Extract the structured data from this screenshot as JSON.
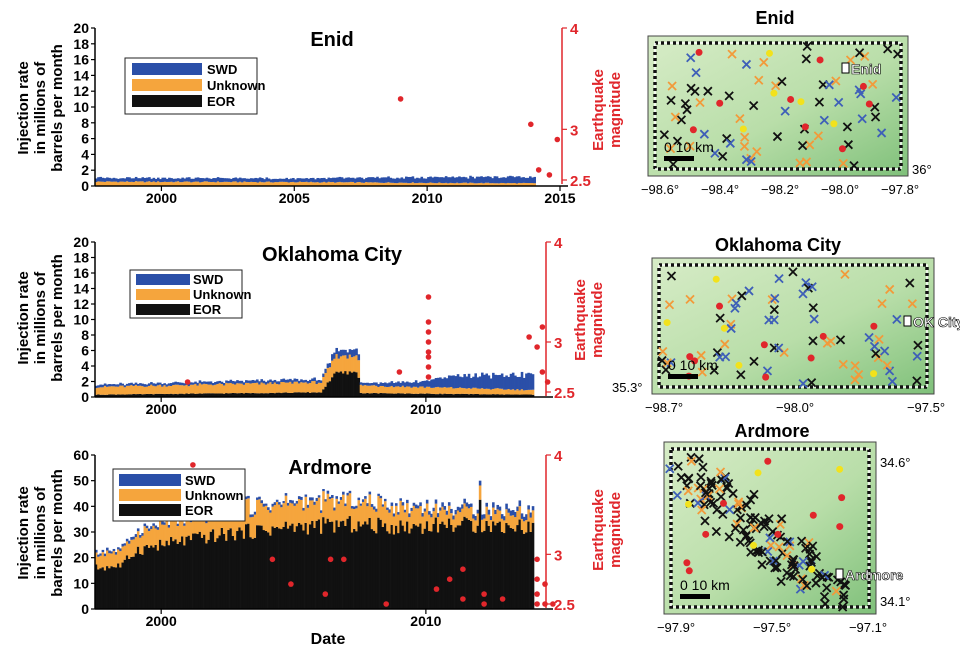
{
  "figure": {
    "yaxis_label_lines": [
      "Injection rate",
      "in millions of",
      "barrels per month"
    ],
    "right_axis_label_lines": [
      "Earthquake",
      "magnitude"
    ],
    "xlabel": "Date"
  },
  "chart_data": [
    {
      "type": "bar",
      "id": "enid",
      "title": "Enid",
      "ylim": [
        0,
        20
      ],
      "yticks": [
        0,
        2,
        4,
        6,
        8,
        10,
        12,
        14,
        16,
        18,
        20
      ],
      "xlim": [
        1997.5,
        2015
      ],
      "xticks": [
        "2000",
        "2005",
        "2010",
        "2015"
      ],
      "legend": [
        "SWD",
        "Unknown",
        "EOR"
      ],
      "legend_position": "top-left",
      "series_keypoints": {
        "EOR": [
          [
            1997.5,
            0.05
          ],
          [
            2014,
            0.05
          ]
        ],
        "Unknown": [
          [
            1997.5,
            0.5
          ],
          [
            2005,
            0.45
          ],
          [
            2010,
            0.35
          ],
          [
            2014,
            0.3
          ]
        ],
        "SWD": [
          [
            1997.5,
            0.5
          ],
          [
            2005,
            0.45
          ],
          [
            2010,
            0.7
          ],
          [
            2014,
            0.8
          ]
        ]
      },
      "bar_end": 2014,
      "mag_axis": {
        "ticks": [
          "2.5",
          "3",
          "4"
        ],
        "range": [
          2.5,
          4
        ]
      },
      "earthquakes": [
        [
          2009.0,
          3.3
        ],
        [
          2013.9,
          3.05
        ],
        [
          2014.2,
          2.6
        ],
        [
          2014.6,
          2.55
        ],
        [
          2014.9,
          2.9
        ]
      ]
    },
    {
      "type": "bar",
      "id": "okc",
      "title": "Oklahoma City",
      "ylim": [
        0,
        20
      ],
      "yticks": [
        0,
        2,
        4,
        6,
        8,
        10,
        12,
        14,
        16,
        18,
        20
      ],
      "xlim": [
        1997.5,
        2014.5
      ],
      "xticks": [
        "2000",
        "2010"
      ],
      "legend": [
        "SWD",
        "Unknown",
        "EOR"
      ],
      "legend_position": "top-left",
      "series_keypoints": {
        "EOR": [
          [
            1997.5,
            0.3
          ],
          [
            2006,
            0.6
          ],
          [
            2006.5,
            3.0
          ],
          [
            2007.4,
            3.2
          ],
          [
            2007.5,
            0.5
          ],
          [
            2014,
            0.3
          ]
        ],
        "Unknown": [
          [
            1997.5,
            1.0
          ],
          [
            2006,
            1.3
          ],
          [
            2006.5,
            2.0
          ],
          [
            2007.4,
            2.3
          ],
          [
            2007.5,
            1.0
          ],
          [
            2014,
            0.6
          ]
        ],
        "SWD": [
          [
            1997.5,
            0.3
          ],
          [
            2006,
            0.4
          ],
          [
            2006.5,
            0.8
          ],
          [
            2007.4,
            0.8
          ],
          [
            2007.5,
            0.3
          ],
          [
            2010,
            0.8
          ],
          [
            2011,
            1.5
          ],
          [
            2014,
            2.0
          ]
        ]
      },
      "bar_end": 2014,
      "mag_axis": {
        "ticks": [
          "2.5",
          "3",
          "4"
        ],
        "range": [
          2.5,
          4
        ]
      },
      "earthquakes": [
        [
          2001.0,
          2.6
        ],
        [
          2009.0,
          2.7
        ],
        [
          2010.1,
          3.45
        ],
        [
          2010.1,
          3.2
        ],
        [
          2010.1,
          3.1
        ],
        [
          2010.1,
          3.0
        ],
        [
          2010.1,
          2.9
        ],
        [
          2010.1,
          2.85
        ],
        [
          2010.1,
          2.75
        ],
        [
          2010.1,
          2.65
        ],
        [
          2013.9,
          3.05
        ],
        [
          2014.2,
          2.95
        ],
        [
          2014.4,
          3.15
        ],
        [
          2014.4,
          2.7
        ],
        [
          2014.6,
          2.6
        ]
      ]
    },
    {
      "type": "bar",
      "id": "ardmore",
      "title": "Ardmore",
      "ylim": [
        0,
        60
      ],
      "yticks": [
        0,
        10,
        20,
        30,
        40,
        50,
        60
      ],
      "xlim": [
        1997.5,
        2014.5
      ],
      "xticks": [
        "2000",
        "2010"
      ],
      "legend": [
        "SWD",
        "Unknown",
        "EOR"
      ],
      "legend_position": "top-left",
      "series_keypoints": {
        "EOR": [
          [
            1997.5,
            16
          ],
          [
            1998.5,
            17
          ],
          [
            1999,
            23
          ],
          [
            2001,
            27
          ],
          [
            2003,
            30
          ],
          [
            2005,
            32
          ],
          [
            2007,
            33
          ],
          [
            2009,
            32
          ],
          [
            2011,
            33
          ],
          [
            2014,
            32
          ]
        ],
        "Unknown": [
          [
            1997.5,
            5
          ],
          [
            1998.5,
            6
          ],
          [
            1999,
            7
          ],
          [
            2001,
            8
          ],
          [
            2003,
            9
          ],
          [
            2005,
            9
          ],
          [
            2007,
            9
          ],
          [
            2009,
            7
          ],
          [
            2011,
            5
          ],
          [
            2014,
            5
          ]
        ],
        "SWD": [
          [
            1997.5,
            1
          ],
          [
            2003,
            1
          ],
          [
            2008,
            1
          ],
          [
            2011,
            1.5
          ],
          [
            2014,
            2
          ]
        ]
      },
      "bar_end": 2014,
      "spike": [
        2012.0,
        50
      ],
      "mag_axis": {
        "ticks": [
          "2.5",
          "3",
          "4"
        ],
        "range": [
          2.5,
          4
        ]
      },
      "earthquakes": [
        [
          2001.2,
          3.9
        ],
        [
          2004.2,
          2.95
        ],
        [
          2004.9,
          2.7
        ],
        [
          2006.4,
          2.95
        ],
        [
          2006.9,
          2.95
        ],
        [
          2006.2,
          2.6
        ],
        [
          2010.4,
          2.65
        ],
        [
          2010.9,
          2.75
        ],
        [
          2011.4,
          2.55
        ],
        [
          2011.4,
          2.85
        ],
        [
          2012.2,
          2.6
        ],
        [
          2012.9,
          2.55
        ],
        [
          2012.2,
          2.5
        ],
        [
          2008.5,
          2.5
        ],
        [
          2014.2,
          2.95
        ],
        [
          2014.2,
          2.75
        ],
        [
          2014.2,
          2.6
        ],
        [
          2014.2,
          2.5
        ],
        [
          2014.5,
          2.5
        ],
        [
          2014.8,
          2.5
        ],
        [
          2014.5,
          2.7
        ]
      ]
    }
  ],
  "maps": [
    {
      "id": "enid-map",
      "title": "Enid",
      "city_label": "Enid",
      "scale_label": "0 10 km",
      "lat_labels": [
        "36°"
      ],
      "lon_labels": [
        "−98.6°",
        "−98.4°",
        "−98.2°",
        "−98.0°",
        "−97.8°"
      ]
    },
    {
      "id": "okc-map",
      "title": "Oklahoma City",
      "city_label": "OK City",
      "scale_label": "0 10 km",
      "lat_labels": [
        "35.3°"
      ],
      "lon_labels": [
        "−98.7°",
        "−98.0°",
        "−97.5°"
      ]
    },
    {
      "id": "ardmore-map",
      "title": "Ardmore",
      "city_label": "Ardmore",
      "scale_label": "0 10 km",
      "lat_labels": [
        "34.6°",
        "34.1°"
      ],
      "lon_labels": [
        "−97.9°",
        "−97.5°",
        "−97.1°"
      ]
    }
  ],
  "colors": {
    "SWD": "#2a4fa8",
    "Unknown": "#f5a53d",
    "EOR": "#111111",
    "quake": "#e0262b",
    "map_light": "#d7ecc7",
    "map_dark": "#7fc07a",
    "marker_blue": "#3e5fb8",
    "marker_orange": "#f29a3a",
    "marker_black": "#111111",
    "marker_yellow": "#f2e21c"
  }
}
